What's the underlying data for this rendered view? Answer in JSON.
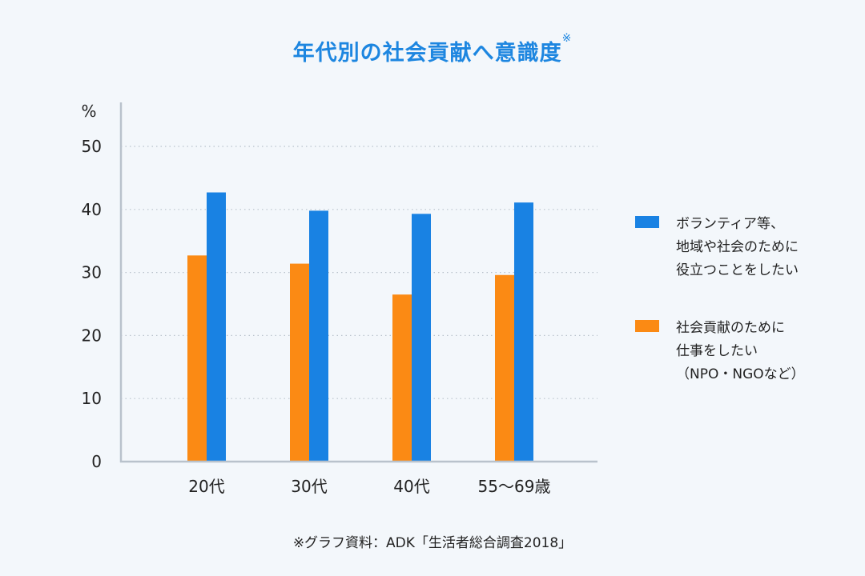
{
  "chart_data": {
    "type": "bar",
    "title": "年代別の社会貢献へ意識度",
    "title_note": "※",
    "ylabel": "%",
    "ylim": [
      0,
      50
    ],
    "yticks": [
      0,
      10,
      20,
      30,
      40,
      50
    ],
    "grid": true,
    "legend_position": "right",
    "categories": [
      "20代",
      "30代",
      "40代",
      "55〜69歳"
    ],
    "series": [
      {
        "name_lines": [
          "社会貢献のために",
          "仕事をしたい",
          "（NPO・NGOなど）"
        ],
        "color": "#fb8a14",
        "values": [
          32.7,
          31.4,
          26.5,
          29.6
        ]
      },
      {
        "name_lines": [
          "ボランティア等、",
          "地域や社会のために",
          "役立つことをしたい"
        ],
        "color": "#1982e3",
        "values": [
          42.7,
          39.8,
          39.3,
          41.1
        ]
      }
    ],
    "source": "※グラフ資料：ADK「生活者総合調査2018」"
  },
  "colors": {
    "title": "#1d86e0",
    "grid": "#b9c2cc",
    "axis": "#b9c2cc",
    "background": "#f3f7fb"
  }
}
